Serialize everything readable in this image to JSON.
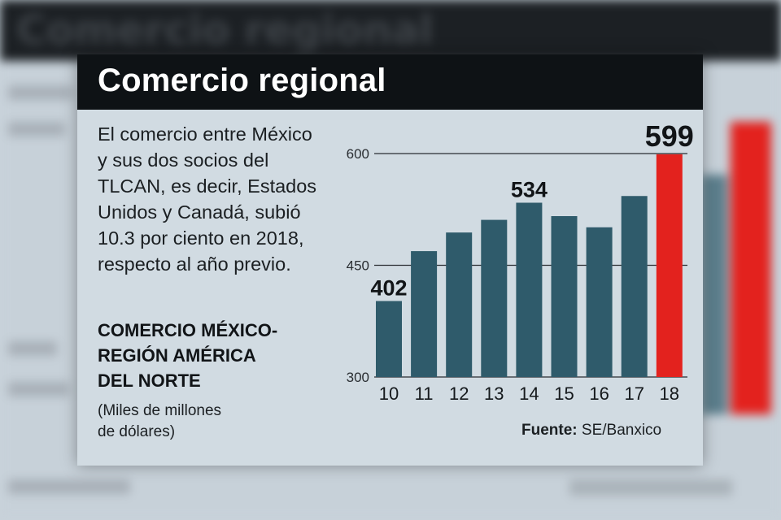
{
  "background": {
    "title": "Comercio regional"
  },
  "card": {
    "title": "Comercio regional",
    "description": "El comercio entre México y sus dos socios del TLCAN, es decir, Estados Unidos y Canadá, subió 10.3 por ciento en 2018, respecto al año previo.",
    "chart_title_line1": "COMERCIO MÉXICO-",
    "chart_title_line2": "REGIÓN AMÉRICA",
    "chart_title_line3": "DEL NORTE",
    "units_line1": "(Miles de millones",
    "units_line2": "de dólares)",
    "source_label": "Fuente:",
    "source_value": "SE/Banxico"
  },
  "colors": {
    "bar": "#2f5b6b",
    "highlight_bar": "#e3221e",
    "header": "#0e1215",
    "panel": "#d1dbe2"
  },
  "chart_data": {
    "type": "bar",
    "title": "COMERCIO MÉXICO-REGIÓN AMÉRICA DEL NORTE",
    "ylabel": "(Miles de millones de dólares)",
    "categories": [
      "10",
      "11",
      "12",
      "13",
      "14",
      "15",
      "16",
      "17",
      "18"
    ],
    "values": [
      402,
      469,
      494,
      511,
      534,
      516,
      501,
      543,
      599
    ],
    "ylim": [
      300,
      600
    ],
    "yticks": [
      300,
      450,
      600
    ],
    "grid": true,
    "highlight_index": 8,
    "data_labels": [
      {
        "index": 0,
        "text": "402"
      },
      {
        "index": 4,
        "text": "534"
      },
      {
        "index": 8,
        "text": "599"
      }
    ]
  }
}
